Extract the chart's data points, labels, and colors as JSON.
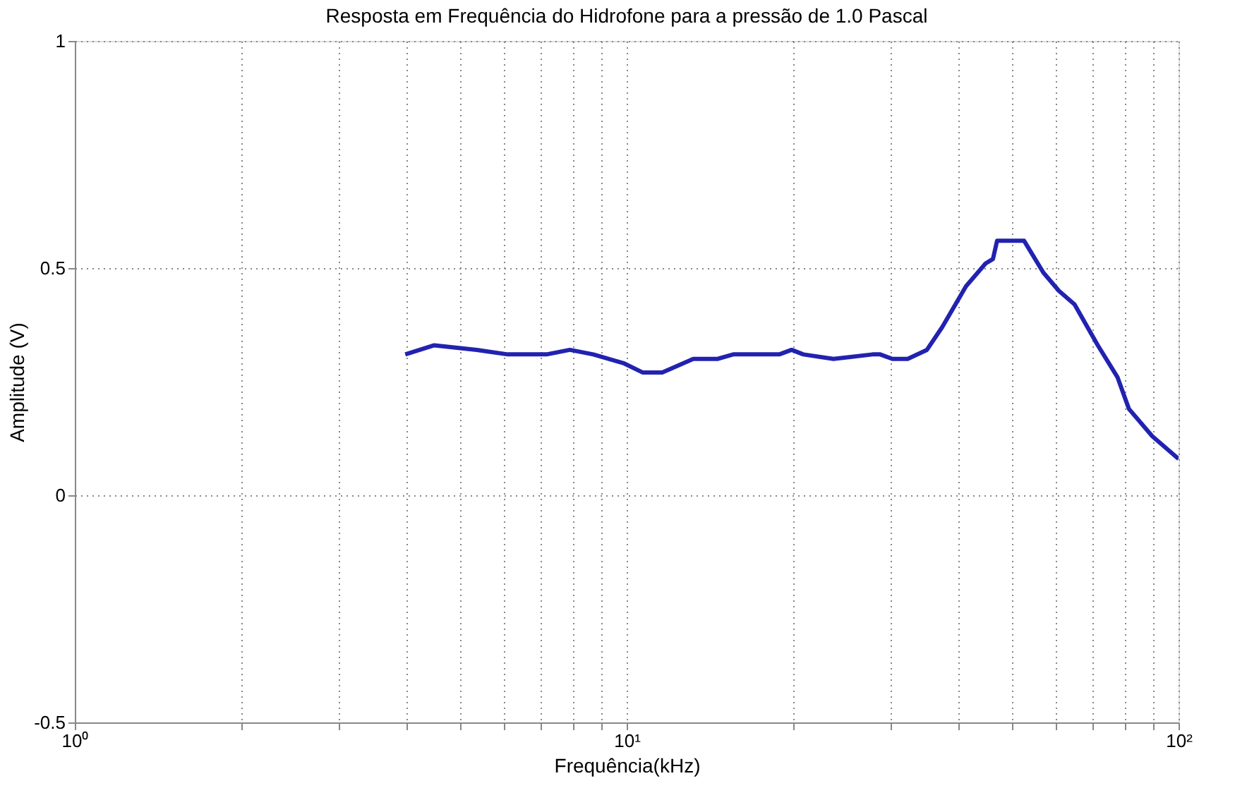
{
  "chart_data": {
    "type": "line",
    "title": "Resposta em Frequência do Hidrofone para a pressão de 1.0 Pascal",
    "xlabel": "Frequência(kHz)",
    "ylabel": "Amplitude (V)",
    "log": "x",
    "grid": true,
    "line_style": "solid",
    "marker": "none",
    "xlim": [
      1,
      100
    ],
    "xticks": [
      {
        "value": 1,
        "label": "10⁰"
      },
      {
        "value": 2,
        "label": null
      },
      {
        "value": 3,
        "label": null
      },
      {
        "value": 4,
        "label": null
      },
      {
        "value": 5,
        "label": null
      },
      {
        "value": 6,
        "label": null
      },
      {
        "value": 7,
        "label": null
      },
      {
        "value": 8,
        "label": null
      },
      {
        "value": 9,
        "label": null
      },
      {
        "value": 10,
        "label": "10¹"
      },
      {
        "value": 20,
        "label": null
      },
      {
        "value": 30,
        "label": null
      },
      {
        "value": 40,
        "label": null
      },
      {
        "value": 50,
        "label": null
      },
      {
        "value": 60,
        "label": null
      },
      {
        "value": 70,
        "label": null
      },
      {
        "value": 80,
        "label": null
      },
      {
        "value": 90,
        "label": null
      },
      {
        "value": 100,
        "label": "10²"
      }
    ],
    "ylim": [
      -0.5,
      1
    ],
    "yticks": [
      -0.5,
      0,
      0.5,
      1
    ],
    "series": [
      {
        "color": "#2222b0",
        "x": [
          3.97,
          4.48,
          5.35,
          6.09,
          7.16,
          7.89,
          8.7,
          9.9,
          10.7,
          11.6,
          13.2,
          14.6,
          15.6,
          18.9,
          19.9,
          20.9,
          23.7,
          27.9,
          28.8,
          30.3,
          32.3,
          35.0,
          37.3,
          41.2,
          44.7,
          46.1,
          46.9,
          52.5,
          56.9,
          60.7,
          64.8,
          71.4,
          77.5,
          81.3,
          89.6,
          100
        ],
        "values": [
          0.31,
          0.33,
          0.32,
          0.31,
          0.31,
          0.32,
          0.31,
          0.29,
          0.27,
          0.27,
          0.3,
          0.3,
          0.31,
          0.31,
          0.32,
          0.31,
          0.3,
          0.31,
          0.31,
          0.3,
          0.3,
          0.32,
          0.37,
          0.46,
          0.51,
          0.52,
          0.56,
          0.56,
          0.49,
          0.45,
          0.42,
          0.33,
          0.26,
          0.19,
          0.13,
          0.08
        ]
      }
    ]
  }
}
